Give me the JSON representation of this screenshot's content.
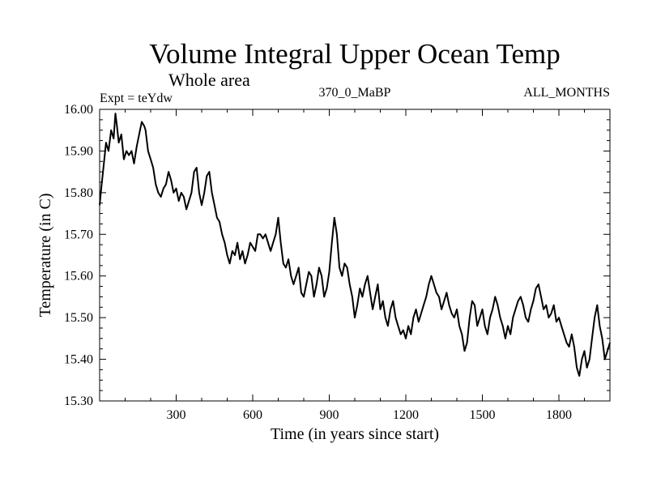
{
  "chart_data": {
    "type": "line",
    "title": "Volume Integral Upper Ocean Temp",
    "subtitle": "Whole area",
    "info_left": "Expt = teYdw",
    "info_center": "370_0_MaBP",
    "info_right": "ALL_MONTHS",
    "xlabel": "Time (in years since start)",
    "ylabel": "Temperature (in C)",
    "xlim": [
      0,
      2000
    ],
    "ylim": [
      15.3,
      16.0
    ],
    "xticks": [
      300,
      600,
      900,
      1200,
      1500,
      1800
    ],
    "xtick_labels": [
      "300",
      "600",
      "900",
      "1200",
      "1500",
      "1800"
    ],
    "yticks": [
      15.3,
      15.4,
      15.5,
      15.6,
      15.7,
      15.8,
      15.9,
      16.0
    ],
    "ytick_labels": [
      "15.30",
      "15.40",
      "15.50",
      "15.60",
      "15.70",
      "15.80",
      "15.90",
      "16.00"
    ],
    "grid": false,
    "series": [
      {
        "name": "Volume Integral Upper Ocean Temp",
        "color": "#000000",
        "x": [
          0,
          8,
          15,
          25,
          35,
          45,
          55,
          62,
          68,
          75,
          85,
          95,
          105,
          115,
          125,
          135,
          145,
          155,
          165,
          175,
          180,
          190,
          200,
          210,
          220,
          230,
          240,
          250,
          260,
          270,
          280,
          290,
          300,
          310,
          320,
          330,
          340,
          350,
          360,
          370,
          380,
          390,
          400,
          410,
          420,
          430,
          440,
          450,
          460,
          470,
          480,
          490,
          500,
          510,
          520,
          530,
          540,
          550,
          560,
          570,
          580,
          590,
          600,
          610,
          620,
          630,
          640,
          650,
          660,
          670,
          680,
          690,
          700,
          710,
          720,
          730,
          740,
          750,
          760,
          770,
          780,
          790,
          800,
          810,
          820,
          830,
          840,
          850,
          860,
          870,
          880,
          890,
          900,
          910,
          920,
          930,
          940,
          950,
          960,
          970,
          980,
          990,
          1000,
          1010,
          1020,
          1030,
          1040,
          1050,
          1060,
          1070,
          1080,
          1090,
          1100,
          1110,
          1120,
          1130,
          1140,
          1150,
          1160,
          1170,
          1180,
          1190,
          1200,
          1210,
          1220,
          1230,
          1240,
          1250,
          1260,
          1270,
          1280,
          1290,
          1300,
          1310,
          1320,
          1330,
          1340,
          1350,
          1360,
          1370,
          1380,
          1390,
          1400,
          1410,
          1420,
          1430,
          1440,
          1450,
          1460,
          1470,
          1480,
          1490,
          1500,
          1510,
          1520,
          1530,
          1540,
          1550,
          1560,
          1570,
          1580,
          1590,
          1600,
          1610,
          1620,
          1630,
          1640,
          1650,
          1660,
          1670,
          1680,
          1690,
          1700,
          1710,
          1720,
          1730,
          1740,
          1750,
          1760,
          1770,
          1780,
          1790,
          1800,
          1810,
          1820,
          1830,
          1840,
          1850,
          1860,
          1870,
          1880,
          1890,
          1900,
          1910,
          1920,
          1930,
          1940,
          1950,
          1960,
          1970,
          1980,
          1990,
          2000
        ],
        "y": [
          15.77,
          15.82,
          15.86,
          15.92,
          15.9,
          15.95,
          15.93,
          15.99,
          15.96,
          15.92,
          15.94,
          15.88,
          15.9,
          15.89,
          15.9,
          15.87,
          15.91,
          15.94,
          15.97,
          15.96,
          15.95,
          15.9,
          15.88,
          15.86,
          15.82,
          15.8,
          15.79,
          15.81,
          15.82,
          15.85,
          15.83,
          15.8,
          15.81,
          15.78,
          15.8,
          15.79,
          15.76,
          15.78,
          15.8,
          15.85,
          15.86,
          15.8,
          15.77,
          15.8,
          15.84,
          15.85,
          15.8,
          15.77,
          15.74,
          15.73,
          15.7,
          15.68,
          15.65,
          15.63,
          15.66,
          15.65,
          15.68,
          15.64,
          15.66,
          15.63,
          15.65,
          15.68,
          15.67,
          15.66,
          15.7,
          15.7,
          15.69,
          15.7,
          15.68,
          15.66,
          15.68,
          15.7,
          15.74,
          15.68,
          15.63,
          15.62,
          15.64,
          15.6,
          15.58,
          15.6,
          15.62,
          15.56,
          15.55,
          15.58,
          15.61,
          15.6,
          15.55,
          15.58,
          15.62,
          15.6,
          15.55,
          15.57,
          15.61,
          15.68,
          15.74,
          15.7,
          15.62,
          15.6,
          15.63,
          15.62,
          15.58,
          15.55,
          15.5,
          15.53,
          15.57,
          15.55,
          15.58,
          15.6,
          15.56,
          15.52,
          15.55,
          15.58,
          15.52,
          15.54,
          15.5,
          15.48,
          15.52,
          15.54,
          15.5,
          15.48,
          15.46,
          15.47,
          15.45,
          15.48,
          15.46,
          15.5,
          15.52,
          15.49,
          15.51,
          15.53,
          15.55,
          15.58,
          15.6,
          15.58,
          15.56,
          15.55,
          15.52,
          15.54,
          15.56,
          15.53,
          15.51,
          15.5,
          15.52,
          15.48,
          15.46,
          15.42,
          15.44,
          15.5,
          15.54,
          15.53,
          15.48,
          15.5,
          15.52,
          15.48,
          15.46,
          15.5,
          15.52,
          15.55,
          15.53,
          15.5,
          15.48,
          15.45,
          15.48,
          15.46,
          15.5,
          15.52,
          15.54,
          15.55,
          15.53,
          15.5,
          15.49,
          15.52,
          15.54,
          15.57,
          15.58,
          15.55,
          15.52,
          15.53,
          15.5,
          15.51,
          15.53,
          15.49,
          15.5,
          15.48,
          15.46,
          15.44,
          15.43,
          15.46,
          15.43,
          15.38,
          15.36,
          15.4,
          15.42,
          15.38,
          15.4,
          15.45,
          15.5,
          15.53,
          15.48,
          15.45,
          15.4,
          15.42,
          15.44
        ]
      }
    ]
  }
}
